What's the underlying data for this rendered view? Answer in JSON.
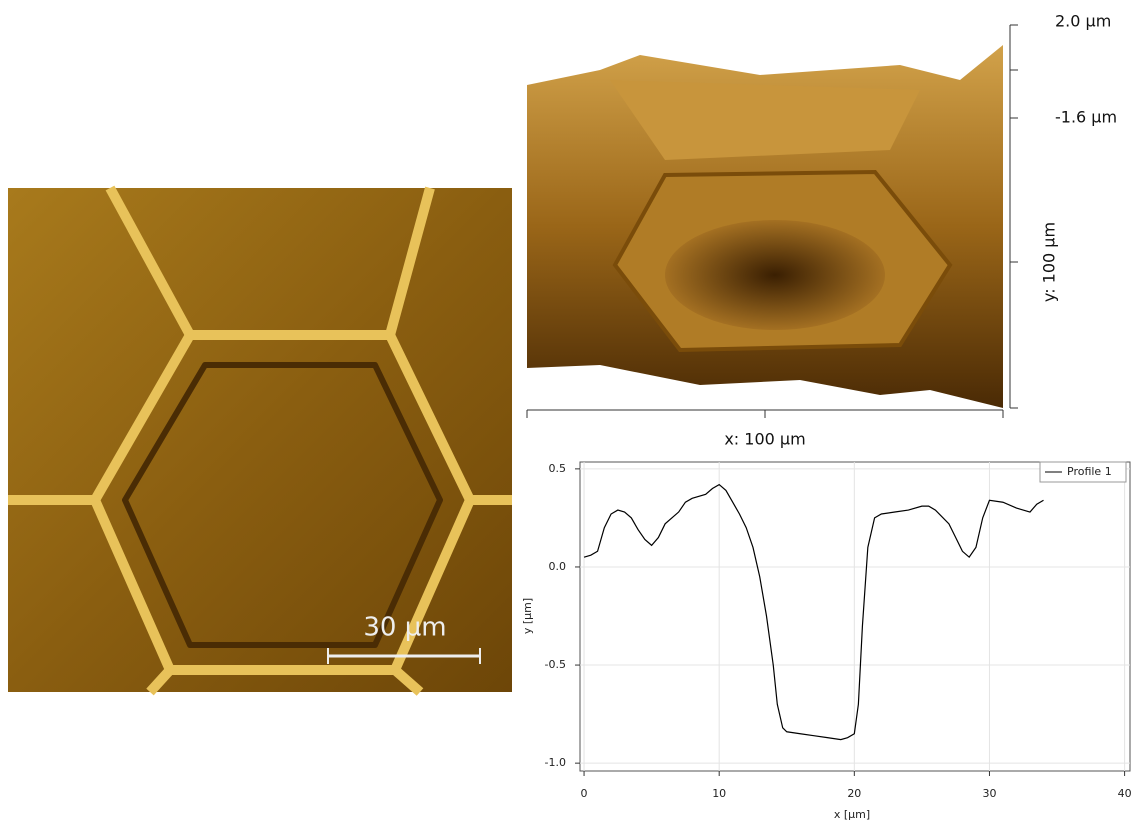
{
  "afm_image": {
    "scale_bar_label": "30 µm"
  },
  "surface_3d": {
    "z_max_label": "2.0 µm",
    "z_min_label": "-1.6 µm",
    "y_axis_label": "y: 100 µm",
    "x_axis_label": "x: 100 µm"
  },
  "chart_data": {
    "type": "line",
    "x_label": "x [µm]",
    "y_label": "y [µm]",
    "xlim": [
      -0.3,
      40.4
    ],
    "ylim": [
      -1.04,
      0.535
    ],
    "xticks": [
      0,
      10,
      20,
      30,
      40
    ],
    "yticks": [
      0.5,
      {
        "value": 0,
        "label": "0.0"
      },
      -0.5,
      {
        "value": -1,
        "label": "-1.0"
      }
    ],
    "grid": true,
    "legend": "top-right",
    "x": [
      0,
      0.5,
      1,
      1.5,
      2,
      2.5,
      3,
      3.5,
      4,
      4.5,
      5,
      5.5,
      6,
      7,
      7.5,
      8,
      9,
      9.5,
      10,
      10.5,
      11,
      11.5,
      12,
      12.5,
      13,
      13.5,
      14,
      14.3,
      14.7,
      15,
      16,
      17,
      18,
      19,
      19.5,
      20,
      20.3,
      20.6,
      21,
      21.5,
      22,
      23,
      24,
      25,
      25.5,
      26,
      27,
      27.5,
      28,
      28.5,
      29,
      29.5,
      30,
      31,
      32,
      33,
      33.5,
      34
    ],
    "series": [
      {
        "name": "Profile 1",
        "color": "#000000",
        "values": [
          0.05,
          0.06,
          0.08,
          0.2,
          0.27,
          0.29,
          0.28,
          0.25,
          0.19,
          0.14,
          0.11,
          0.15,
          0.22,
          0.28,
          0.33,
          0.35,
          0.37,
          0.4,
          0.42,
          0.39,
          0.33,
          0.27,
          0.2,
          0.1,
          -0.05,
          -0.25,
          -0.5,
          -0.7,
          -0.82,
          -0.84,
          -0.85,
          -0.86,
          -0.87,
          -0.88,
          -0.87,
          -0.85,
          -0.7,
          -0.3,
          0.1,
          0.25,
          0.27,
          0.28,
          0.29,
          0.31,
          0.31,
          0.29,
          0.22,
          0.15,
          0.08,
          0.05,
          0.1,
          0.25,
          0.34,
          0.33,
          0.3,
          0.28,
          0.32,
          0.34
        ]
      }
    ]
  }
}
